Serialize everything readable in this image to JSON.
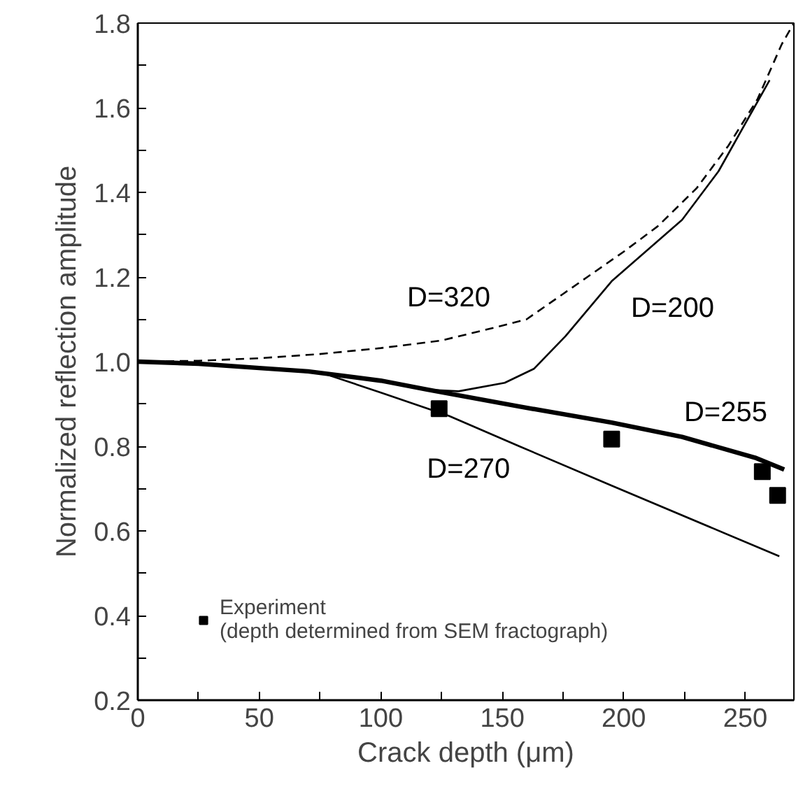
{
  "chart_data": {
    "type": "line",
    "xlabel": "Crack depth (μm)",
    "ylabel": "Normalized reflection amplitude",
    "xlim": [
      0,
      270
    ],
    "ylim": [
      0.2,
      1.8
    ],
    "xticks": [
      0,
      {
        "value": 25,
        "label": null
      },
      50,
      {
        "value": 75,
        "label": null
      },
      100,
      {
        "value": 125,
        "label": null
      },
      150,
      {
        "value": 175,
        "label": null
      },
      200,
      {
        "value": 225,
        "label": null
      },
      250
    ],
    "yticks": [
      {
        "value": 0.2,
        "label": "0.2"
      },
      {
        "value": 0.3,
        "label": null
      },
      {
        "value": 0.4,
        "label": "0.4"
      },
      {
        "value": 0.5,
        "label": null
      },
      {
        "value": 0.6,
        "label": "0.6"
      },
      {
        "value": 0.7,
        "label": null
      },
      {
        "value": 0.8,
        "label": "0.8"
      },
      {
        "value": 0.9,
        "label": null
      },
      {
        "value": 1.0,
        "label": "1.0"
      },
      {
        "value": 1.1,
        "label": null
      },
      {
        "value": 1.2,
        "label": "1.2"
      },
      {
        "value": 1.3,
        "label": null
      },
      {
        "value": 1.4,
        "label": "1.4"
      },
      {
        "value": 1.5,
        "label": null
      },
      {
        "value": 1.6,
        "label": "1.6"
      },
      {
        "value": 1.7,
        "label": null
      },
      {
        "value": 1.8,
        "label": "1.8"
      }
    ],
    "grid": false,
    "legend": "bottom left",
    "series": [
      {
        "name": "D=320",
        "line_style": "dashed",
        "color": "#000000",
        "x": [
          0,
          25,
          50,
          75,
          100,
          125,
          150,
          160,
          175,
          185,
          200,
          214,
          230,
          243,
          255,
          265,
          270
        ],
        "values": [
          1.0,
          1.002,
          1.008,
          1.018,
          1.032,
          1.05,
          1.085,
          1.1,
          1.16,
          1.2,
          1.26,
          1.32,
          1.41,
          1.51,
          1.62,
          1.75,
          1.8
        ]
      },
      {
        "name": "D=200",
        "line_style": "solid",
        "color": "#000000",
        "x": [
          0,
          25,
          50,
          70,
          100,
          119,
          132,
          151,
          163,
          176,
          195,
          224,
          239,
          260
        ],
        "values": [
          1.0,
          0.995,
          0.985,
          0.977,
          0.955,
          0.934,
          0.93,
          0.95,
          0.983,
          1.06,
          1.19,
          1.335,
          1.45,
          1.665
        ]
      },
      {
        "name": "D=255",
        "line_style": "solid",
        "color": "#000000",
        "x": [
          0,
          25,
          50,
          70,
          100,
          119,
          157,
          195,
          224,
          254,
          266
        ],
        "values": [
          1.0,
          0.995,
          0.985,
          0.977,
          0.955,
          0.934,
          0.894,
          0.856,
          0.822,
          0.773,
          0.745
        ]
      },
      {
        "name": "D=270",
        "line_style": "solid",
        "color": "#000000",
        "x": [
          0,
          25,
          50,
          77,
          100,
          128,
          157,
          195,
          264
        ],
        "values": [
          1.0,
          0.995,
          0.985,
          0.971,
          0.927,
          0.872,
          0.8,
          0.707,
          0.54
        ]
      },
      {
        "type": "scatter",
        "marker": "square",
        "name": "Experiment\n(depth determined from SEM fractograph)",
        "color": "#000000",
        "x": [
          124,
          195,
          257,
          263.3
        ],
        "values": [
          0.889,
          0.817,
          0.74,
          0.684
        ]
      }
    ]
  }
}
